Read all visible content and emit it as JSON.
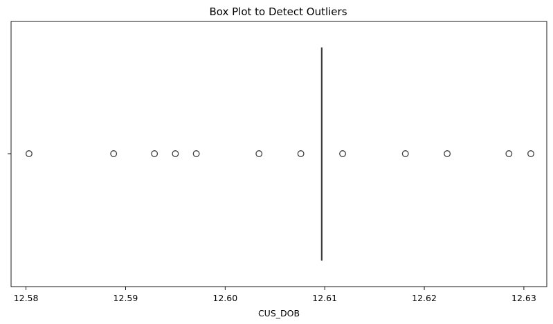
{
  "chart_data": {
    "type": "box",
    "title": "Box Plot to Detect Outliers",
    "xlabel": "CUS_DOB",
    "ylabel": "",
    "orientation": "horizontal",
    "xlim": [
      12.5785,
      12.6323
    ],
    "xticks": [
      12.58,
      12.59,
      12.6,
      12.61,
      12.62,
      12.63
    ],
    "xtick_labels": [
      "12.58",
      "12.59",
      "12.60",
      "12.61",
      "12.62",
      "12.63"
    ],
    "grid": false,
    "box": {
      "whisker_low": 12.6097,
      "q1": 12.6097,
      "median": 12.6097,
      "q3": 12.6097,
      "whisker_high": 12.6097
    },
    "outliers": [
      12.5803,
      12.5888,
      12.5929,
      12.595,
      12.5971,
      12.6034,
      12.6076,
      12.6118,
      12.6181,
      12.6223,
      12.6285,
      12.6307
    ],
    "colors": {
      "box_line": "#3f3f3f",
      "marker_edge": "#3f3f3f",
      "axes": "#000000"
    }
  }
}
